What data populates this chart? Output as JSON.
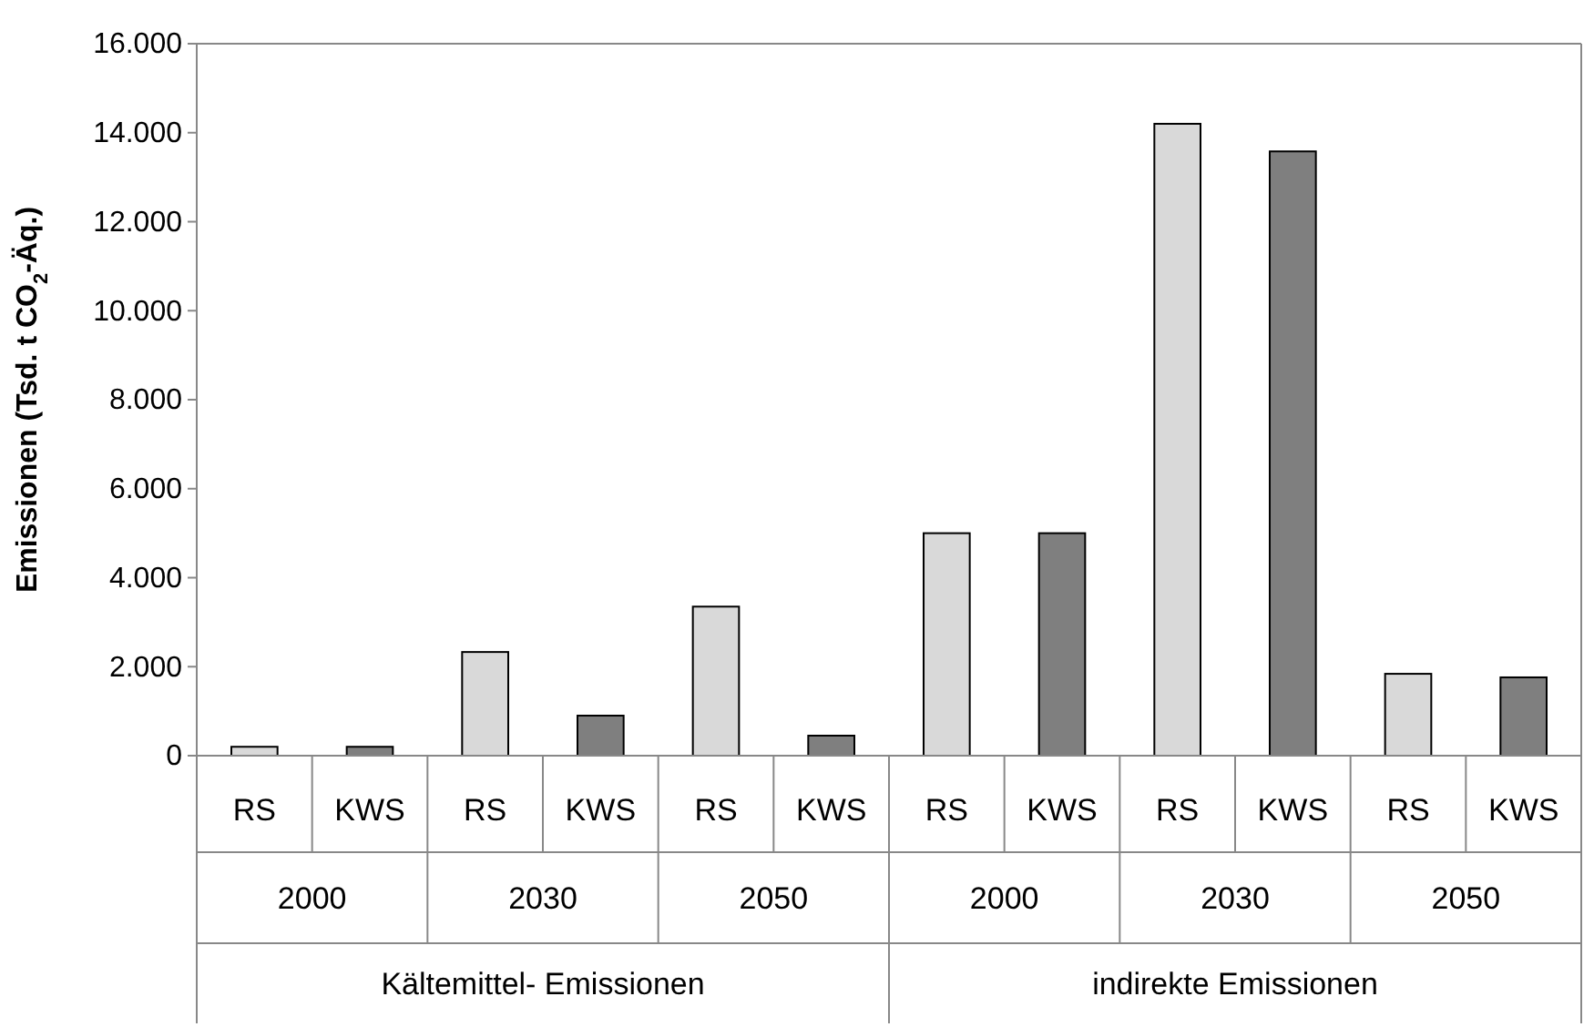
{
  "chart_data": {
    "type": "bar",
    "ylabel": "Emissionen (Tsd. t CO$_{2}$-Äq.)",
    "categories": [
      "RS",
      "KWS",
      "RS",
      "KWS",
      "RS",
      "KWS",
      "RS",
      "KWS",
      "RS",
      "KWS",
      "RS",
      "KWS"
    ],
    "values": [
      200,
      200,
      2330,
      900,
      3350,
      450,
      5000,
      5000,
      14200,
      13580,
      1840,
      1760
    ],
    "colors": [
      "#d9d9d9",
      "#7f7f7f",
      "#d9d9d9",
      "#7f7f7f",
      "#d9d9d9",
      "#7f7f7f",
      "#d9d9d9",
      "#7f7f7f",
      "#d9d9d9",
      "#7f7f7f",
      "#d9d9d9",
      "#7f7f7f"
    ],
    "annotations": [
      "2000",
      "2030",
      "2050",
      "2000",
      "2030",
      "2050",
      "Kältemittel- Emissionen",
      "indirekte Emissionen"
    ],
    "ylim": [
      0,
      16000
    ],
    "yticks": [
      {
        "value": 0,
        "label": "0"
      },
      {
        "value": 2000,
        "label": "2.000"
      },
      {
        "value": 4000,
        "label": "4.000"
      },
      {
        "value": 6000,
        "label": "6.000"
      },
      {
        "value": 8000,
        "label": "8.000"
      },
      {
        "value": 10000,
        "label": "10.000"
      },
      {
        "value": 12000,
        "label": "12.000"
      },
      {
        "value": 14000,
        "label": "14.000"
      },
      {
        "value": 16000,
        "label": "16.000"
      }
    ],
    "grid": false
  }
}
